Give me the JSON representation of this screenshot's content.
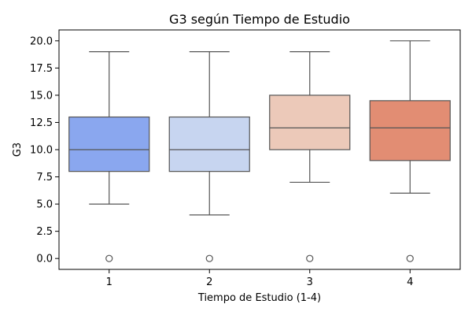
{
  "chart_data": {
    "type": "box",
    "title": "G3 según Tiempo de Estudio",
    "xlabel": "Tiempo de Estudio (1-4)",
    "ylabel": "G3",
    "ylim": [
      -1,
      21
    ],
    "yticks": [
      "0.0",
      "2.5",
      "5.0",
      "7.5",
      "10.0",
      "12.5",
      "15.0",
      "17.5",
      "20.0"
    ],
    "categories": [
      "1",
      "2",
      "3",
      "4"
    ],
    "grid": false,
    "boxes": [
      {
        "category": "1",
        "whisker_low": 5,
        "q1": 8,
        "median": 10,
        "q3": 13,
        "whisker_high": 19,
        "outliers": [
          0
        ],
        "color": "#8aa7ef"
      },
      {
        "category": "2",
        "whisker_low": 4,
        "q1": 8,
        "median": 10,
        "q3": 13,
        "whisker_high": 19,
        "outliers": [
          0
        ],
        "color": "#c7d5f0"
      },
      {
        "category": "3",
        "whisker_low": 7,
        "q1": 10,
        "median": 12,
        "q3": 15,
        "whisker_high": 19,
        "outliers": [
          0
        ],
        "color": "#ecc9b9"
      },
      {
        "category": "4",
        "whisker_low": 6,
        "q1": 9,
        "median": 12,
        "q3": 14.5,
        "whisker_high": 20,
        "outliers": [
          0
        ],
        "color": "#e28d73"
      }
    ]
  }
}
